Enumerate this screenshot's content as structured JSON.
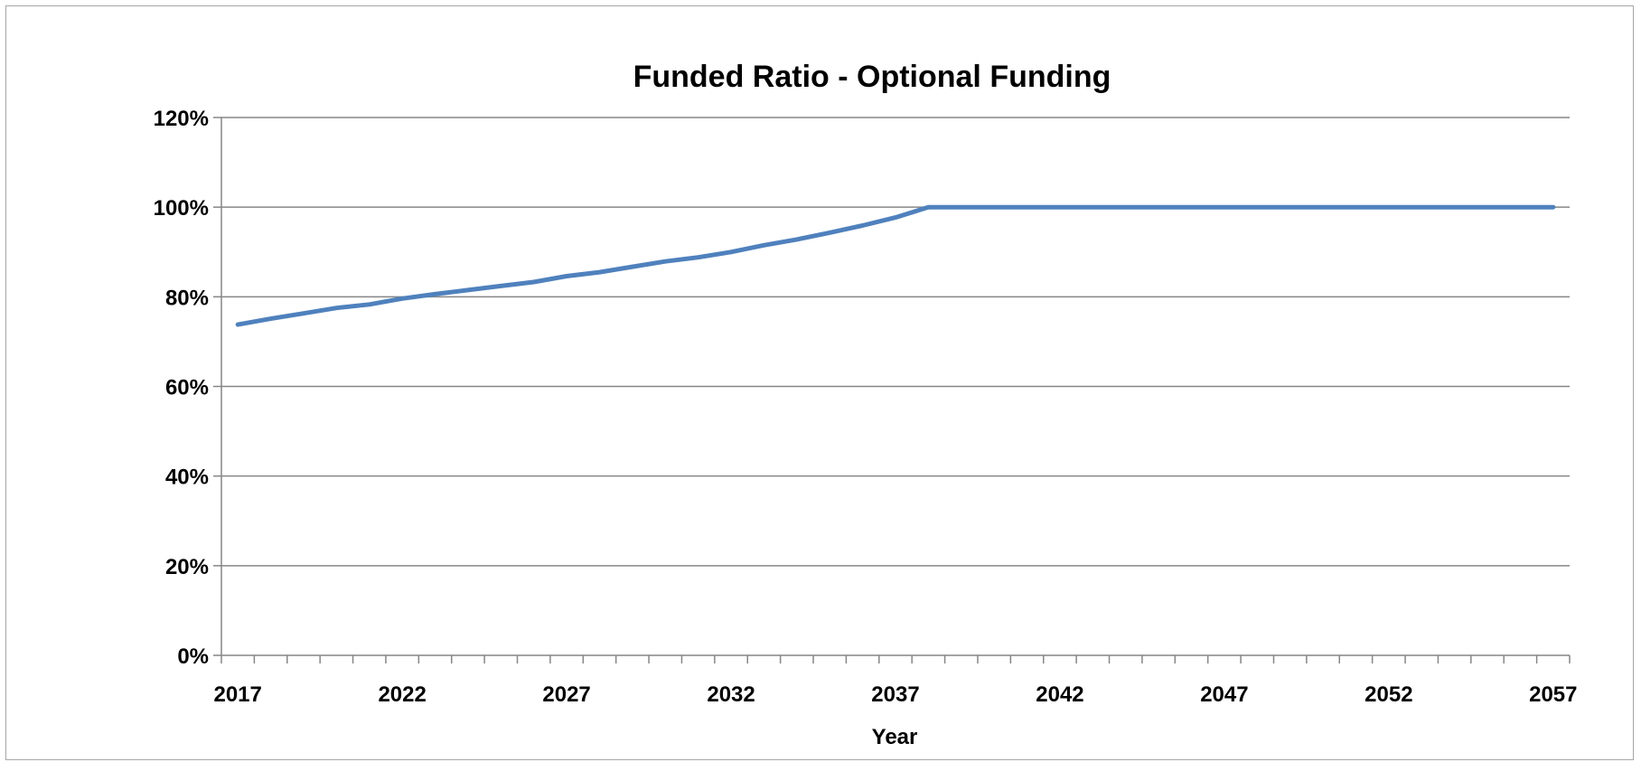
{
  "chart_data": {
    "type": "line",
    "title": "Funded Ratio - Optional Funding",
    "xlabel": "Year",
    "ylabel": "",
    "ylim": [
      0,
      120
    ],
    "xlim": [
      2017,
      2057
    ],
    "y_unit": "%",
    "grid": "horizontal",
    "legend": "none",
    "x_tick_labels": [
      "2017",
      "2022",
      "2027",
      "2032",
      "2037",
      "2042",
      "2047",
      "2052",
      "2057"
    ],
    "y_tick_labels": [
      "0%",
      "20%",
      "40%",
      "60%",
      "80%",
      "100%",
      "120%"
    ],
    "y_ticks": [
      0,
      20,
      40,
      60,
      80,
      100,
      120
    ],
    "line_color": "#4f81bd",
    "series": [
      {
        "x": [
          2017,
          2018,
          2019,
          2020,
          2021,
          2022,
          2023,
          2024,
          2025,
          2026,
          2027,
          2028,
          2029,
          2030,
          2031,
          2032,
          2033,
          2034,
          2035,
          2036,
          2037,
          2038,
          2039,
          2040,
          2041,
          2042,
          2043,
          2044,
          2045,
          2046,
          2047,
          2048,
          2049,
          2050,
          2051,
          2052,
          2053,
          2054,
          2055,
          2056,
          2057
        ],
        "values": [
          73.8,
          75.1,
          76.3,
          77.5,
          78.3,
          79.6,
          80.6,
          81.5,
          82.4,
          83.3,
          84.6,
          85.5,
          86.7,
          87.9,
          88.8,
          90.0,
          91.5,
          92.8,
          94.3,
          95.9,
          97.7,
          100.0,
          100.0,
          100.0,
          100.0,
          100.0,
          100.0,
          100.0,
          100.0,
          100.0,
          100.0,
          100.0,
          100.0,
          100.0,
          100.0,
          100.0,
          100.0,
          100.0,
          100.0,
          100.0,
          100.0
        ]
      }
    ]
  }
}
